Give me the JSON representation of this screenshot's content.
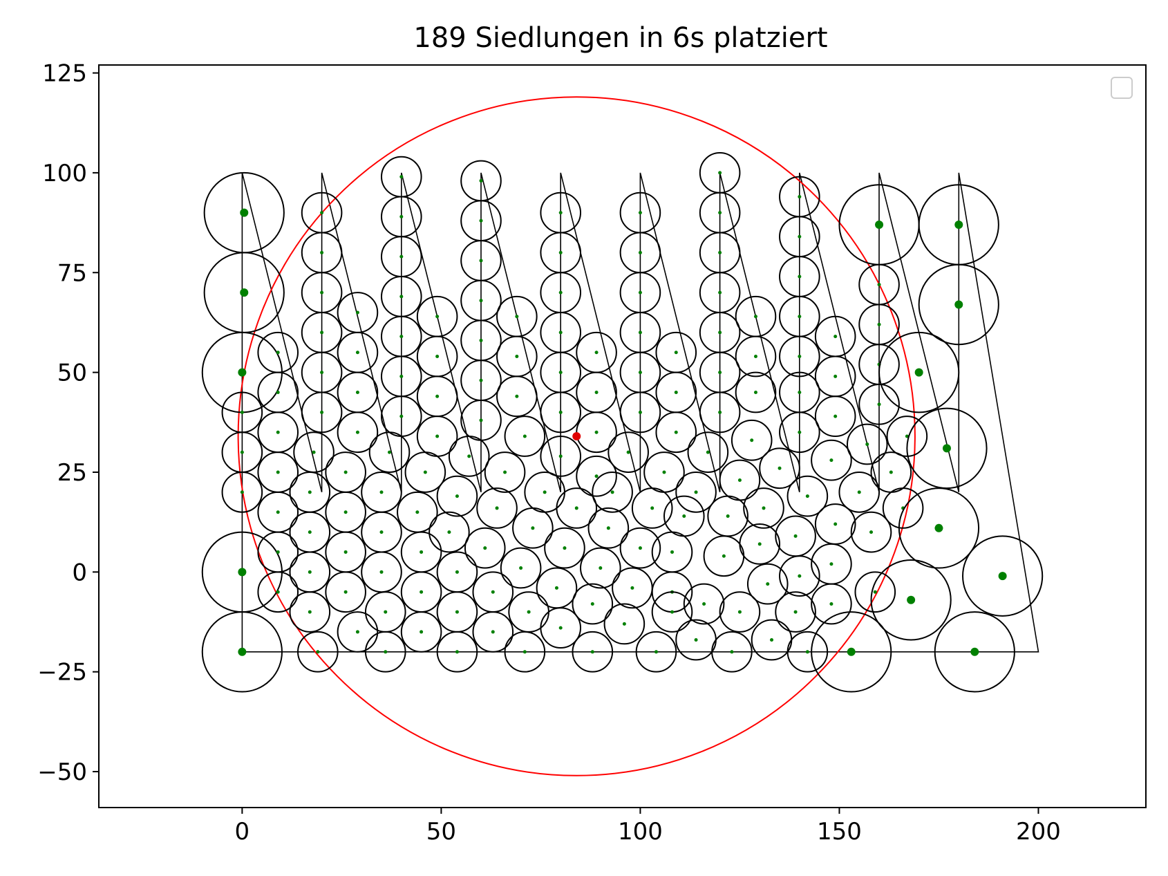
{
  "chart_data": {
    "type": "scatter",
    "title": "189 Siedlungen in 6s platziert",
    "xlabel": "",
    "ylabel": "",
    "xlim": [
      -36,
      227
    ],
    "ylim": [
      -59,
      127
    ],
    "x_ticks": [
      0,
      50,
      100,
      150,
      200
    ],
    "y_ticks": [
      -50,
      -25,
      0,
      25,
      50,
      75,
      100,
      125
    ],
    "x_tick_labels": [
      "0",
      "50",
      "100",
      "150",
      "200"
    ],
    "y_tick_labels": [
      "−50",
      "−25",
      "0",
      "25",
      "50",
      "75",
      "100",
      "125"
    ],
    "grid": false,
    "legend": "top-right (empty)",
    "colors": {
      "circles": "#000000",
      "centers": "#008000",
      "bounding_circle": "#ff0000",
      "center_point": "#e00000",
      "path": "#000000"
    },
    "bounding_circle": {
      "cx": 84,
      "cy": 34,
      "r": 85
    },
    "center_point": {
      "x": 84,
      "y": 34
    },
    "boundary_path": [
      [
        0,
        100
      ],
      [
        20,
        20
      ],
      [
        20,
        100
      ],
      [
        40,
        20
      ],
      [
        40,
        100
      ],
      [
        60,
        20
      ],
      [
        60,
        100
      ],
      [
        80,
        20
      ],
      [
        80,
        100
      ],
      [
        100,
        20
      ],
      [
        100,
        100
      ],
      [
        120,
        20
      ],
      [
        120,
        100
      ],
      [
        140,
        20
      ],
      [
        140,
        100
      ],
      [
        160,
        20
      ],
      [
        160,
        100
      ],
      [
        180,
        20
      ],
      [
        180,
        100
      ],
      [
        200,
        -20
      ],
      [
        0,
        -20
      ],
      [
        0,
        100
      ]
    ],
    "settlements": [
      [
        0.5,
        90,
        10
      ],
      [
        0.5,
        70,
        10
      ],
      [
        0,
        50,
        10
      ],
      [
        0,
        0,
        10
      ],
      [
        0,
        -20,
        10
      ],
      [
        0,
        40,
        5
      ],
      [
        0,
        30,
        5
      ],
      [
        0,
        20,
        5
      ],
      [
        9,
        55,
        5
      ],
      [
        9,
        45,
        5
      ],
      [
        9,
        35,
        5
      ],
      [
        9,
        25,
        5
      ],
      [
        9,
        15,
        5
      ],
      [
        9,
        5,
        5
      ],
      [
        9,
        -5,
        5
      ],
      [
        20,
        90,
        5
      ],
      [
        20,
        80,
        5
      ],
      [
        20,
        70,
        5
      ],
      [
        20,
        60,
        5
      ],
      [
        20,
        50,
        5
      ],
      [
        20,
        40,
        5
      ],
      [
        18,
        30,
        5
      ],
      [
        17,
        20,
        5
      ],
      [
        17,
        10,
        5
      ],
      [
        17,
        0,
        5
      ],
      [
        17,
        -10,
        5
      ],
      [
        19,
        -20,
        5
      ],
      [
        29,
        65,
        5
      ],
      [
        29,
        55,
        5
      ],
      [
        29,
        45,
        5
      ],
      [
        29,
        35,
        5
      ],
      [
        26,
        25,
        5
      ],
      [
        26,
        15,
        5
      ],
      [
        26,
        5,
        5
      ],
      [
        26,
        -5,
        5
      ],
      [
        29,
        -15,
        5
      ],
      [
        40,
        99,
        5
      ],
      [
        40,
        89,
        5
      ],
      [
        40,
        79,
        5
      ],
      [
        40,
        69,
        5
      ],
      [
        40,
        59,
        5
      ],
      [
        40,
        49,
        5
      ],
      [
        40,
        39,
        5
      ],
      [
        37,
        30,
        5
      ],
      [
        35,
        20,
        5
      ],
      [
        35,
        10,
        5
      ],
      [
        35,
        0,
        5
      ],
      [
        36,
        -10,
        5
      ],
      [
        36,
        -20,
        5
      ],
      [
        49,
        64,
        5
      ],
      [
        49,
        54,
        5
      ],
      [
        49,
        44,
        5
      ],
      [
        49,
        34,
        5
      ],
      [
        46,
        25,
        5
      ],
      [
        44,
        15,
        5
      ],
      [
        45,
        5,
        5
      ],
      [
        45,
        -5,
        5
      ],
      [
        45,
        -15,
        5
      ],
      [
        60,
        98,
        5
      ],
      [
        60,
        88,
        5
      ],
      [
        60,
        78,
        5
      ],
      [
        60,
        68,
        5
      ],
      [
        60,
        58,
        5
      ],
      [
        60,
        48,
        5
      ],
      [
        60,
        38,
        5
      ],
      [
        57,
        29,
        5
      ],
      [
        54,
        19,
        5
      ],
      [
        52,
        10,
        5
      ],
      [
        54,
        0,
        5
      ],
      [
        54,
        -10,
        5
      ],
      [
        54,
        -20,
        5
      ],
      [
        69,
        64,
        5
      ],
      [
        69,
        54,
        5
      ],
      [
        69,
        44,
        5
      ],
      [
        71,
        34,
        5
      ],
      [
        66,
        25,
        5
      ],
      [
        64,
        16,
        5
      ],
      [
        61,
        6,
        5
      ],
      [
        63,
        -5,
        5
      ],
      [
        63,
        -15,
        5
      ],
      [
        80,
        90,
        5
      ],
      [
        80,
        80,
        5
      ],
      [
        80,
        70,
        5
      ],
      [
        80,
        60,
        5
      ],
      [
        80,
        50,
        5
      ],
      [
        80,
        40,
        5
      ],
      [
        80,
        29,
        5
      ],
      [
        76,
        20,
        5
      ],
      [
        73,
        11,
        5
      ],
      [
        70,
        1,
        5
      ],
      [
        72,
        -10,
        5
      ],
      [
        71,
        -20,
        5
      ],
      [
        89,
        55,
        5
      ],
      [
        89,
        45,
        5
      ],
      [
        89,
        35,
        5
      ],
      [
        89,
        24,
        5
      ],
      [
        84,
        16,
        5
      ],
      [
        81,
        6,
        5
      ],
      [
        79,
        -4,
        5
      ],
      [
        80,
        -14,
        5
      ],
      [
        100,
        90,
        5
      ],
      [
        100,
        80,
        5
      ],
      [
        100,
        70,
        5
      ],
      [
        100,
        60,
        5
      ],
      [
        100,
        50,
        5
      ],
      [
        100,
        40,
        5
      ],
      [
        97,
        30,
        5
      ],
      [
        93,
        20,
        5
      ],
      [
        92,
        11,
        5
      ],
      [
        90,
        1,
        5
      ],
      [
        88,
        -8,
        5
      ],
      [
        88,
        -20,
        5
      ],
      [
        109,
        55,
        5
      ],
      [
        109,
        45,
        5
      ],
      [
        109,
        35,
        5
      ],
      [
        106,
        25,
        5
      ],
      [
        103,
        16,
        5
      ],
      [
        100,
        6,
        5
      ],
      [
        98,
        -4,
        5
      ],
      [
        96,
        -13,
        5
      ],
      [
        104,
        -20,
        5
      ],
      [
        120,
        100,
        5
      ],
      [
        120,
        90,
        5
      ],
      [
        120,
        80,
        5
      ],
      [
        120,
        70,
        5
      ],
      [
        120,
        60,
        5
      ],
      [
        120,
        50,
        5
      ],
      [
        120,
        40,
        5
      ],
      [
        117,
        30,
        5
      ],
      [
        114,
        20,
        5
      ],
      [
        111,
        14,
        5
      ],
      [
        108,
        5,
        5
      ],
      [
        108,
        -5,
        5
      ],
      [
        108,
        -10,
        5
      ],
      [
        114,
        -17,
        5
      ],
      [
        129,
        64,
        5
      ],
      [
        129,
        54,
        5
      ],
      [
        129,
        45,
        5
      ],
      [
        128,
        33,
        5
      ],
      [
        125,
        23,
        5
      ],
      [
        122,
        14,
        5
      ],
      [
        121,
        4,
        5
      ],
      [
        116,
        -8,
        5
      ],
      [
        123,
        -20,
        5
      ],
      [
        140,
        94,
        5
      ],
      [
        140,
        84,
        5
      ],
      [
        140,
        74,
        5
      ],
      [
        140,
        64,
        5
      ],
      [
        140,
        54,
        5
      ],
      [
        140,
        45,
        5
      ],
      [
        140,
        35,
        5
      ],
      [
        135,
        26,
        5
      ],
      [
        131,
        16,
        5
      ],
      [
        130,
        7,
        5
      ],
      [
        132,
        -3,
        5
      ],
      [
        125,
        -10,
        5
      ],
      [
        133,
        -17,
        5
      ],
      [
        149,
        59,
        5
      ],
      [
        149,
        49,
        5
      ],
      [
        149,
        39,
        5
      ],
      [
        148,
        28,
        5
      ],
      [
        142,
        19,
        5
      ],
      [
        139,
        9,
        5
      ],
      [
        140,
        -1,
        5
      ],
      [
        139,
        -10,
        5
      ],
      [
        142,
        -20,
        5
      ],
      [
        160,
        72,
        5
      ],
      [
        160,
        62,
        5
      ],
      [
        160,
        52,
        5
      ],
      [
        160,
        42,
        5
      ],
      [
        157,
        32,
        5
      ],
      [
        155,
        20,
        5
      ],
      [
        149,
        12,
        5
      ],
      [
        148,
        2,
        5
      ],
      [
        148,
        -8,
        5
      ],
      [
        159,
        -5,
        5
      ],
      [
        158,
        10,
        5
      ],
      [
        163,
        25,
        5
      ],
      [
        166,
        16,
        5
      ],
      [
        167,
        34,
        5
      ],
      [
        160,
        87,
        10
      ],
      [
        180,
        87,
        10
      ],
      [
        180,
        67,
        10
      ],
      [
        170,
        50,
        10
      ],
      [
        177,
        31,
        10
      ],
      [
        175,
        11,
        10
      ],
      [
        168,
        -7,
        10
      ],
      [
        191,
        -1,
        10
      ],
      [
        184,
        -20,
        10
      ],
      [
        153,
        -20,
        10
      ]
    ]
  }
}
